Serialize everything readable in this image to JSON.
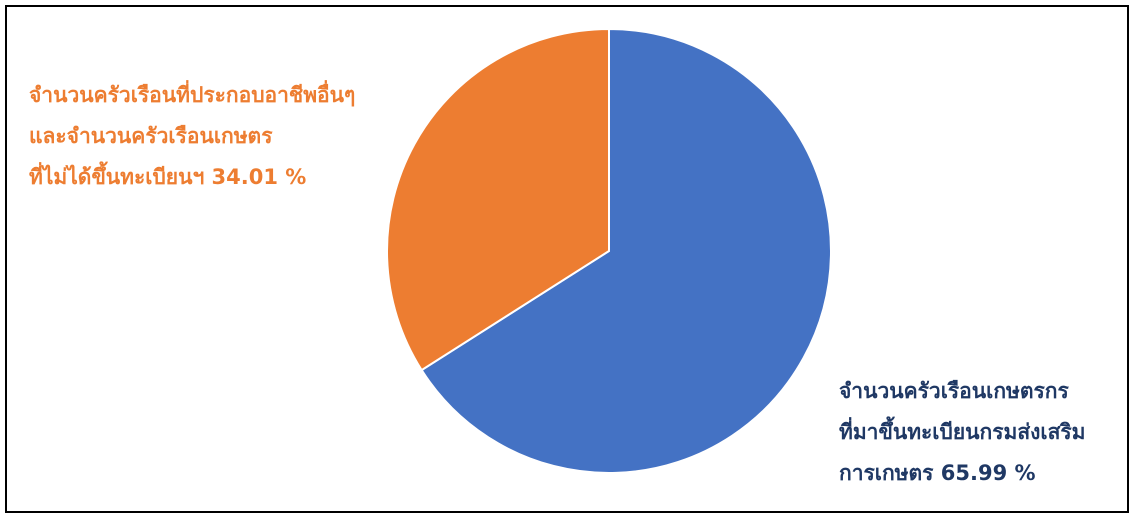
{
  "chart_data": {
    "type": "pie",
    "series": [
      {
        "slices": [
          {
            "label_lines": [
              "จำนวนครัวเรือนเกษตรกร",
              "ที่มาขึ้นทะเบียนกรมส่งเสริม",
              "การเกษตร 65.99 %"
            ],
            "value": 65.99,
            "color": "#4472C4"
          },
          {
            "label_lines": [
              "จำนวนครัวเรือนที่ประกอบอาชีพอื่นๆ",
              "และจำนวนครัวเรือนเกษตร",
              "ที่ไม่ได้ขึ้นทะเบียนฯ 34.01 %"
            ],
            "value": 34.01,
            "color": "#ED7D31"
          }
        ]
      }
    ]
  }
}
